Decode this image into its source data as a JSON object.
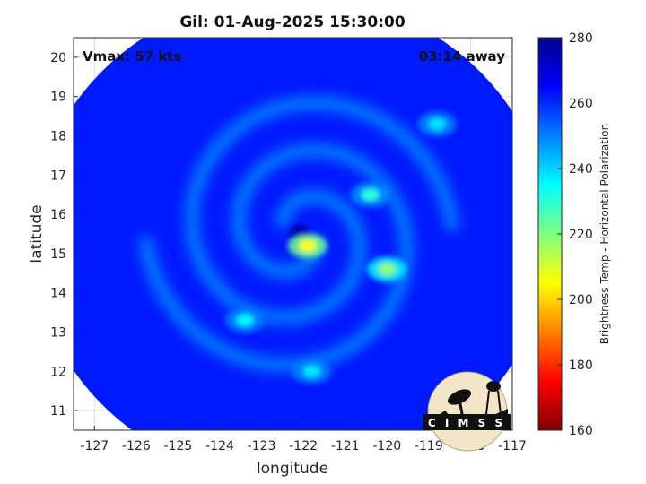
{
  "chart_data": {
    "type": "heatmap",
    "title": "Gil: 01-Aug-2025 15:30:00",
    "xlabel": "longitude",
    "ylabel": "latitude",
    "xlim": [
      -127.5,
      -117
    ],
    "ylim": [
      10.5,
      20.5
    ],
    "xticks": [
      -127,
      -126,
      -125,
      -124,
      -123,
      -122,
      -121,
      -120,
      -119,
      -118,
      -117
    ],
    "yticks": [
      11,
      12,
      13,
      14,
      15,
      16,
      17,
      18,
      19,
      20
    ],
    "grid": true,
    "colorbar": {
      "label": "Brightness Temp - Horizontal Polarization",
      "range": [
        160,
        280
      ],
      "ticks": [
        160,
        180,
        200,
        220,
        240,
        260,
        280
      ],
      "colormap": [
        "#800000",
        "#ff0000",
        "#ff8000",
        "#ffff00",
        "#80ff80",
        "#00ffff",
        "#0080ff",
        "#0000ff",
        "#00008f"
      ]
    },
    "swath_center": {
      "lon": -122.3,
      "lat": 15.4
    },
    "storm_center": {
      "lon": -122.1,
      "lat": 15.5
    },
    "background_value": 262,
    "features": [
      {
        "name": "eyewall",
        "lon": -121.9,
        "lat": 15.2,
        "value": 205
      },
      {
        "name": "rainband-east",
        "lon": -120.0,
        "lat": 14.6,
        "value": 218
      },
      {
        "name": "rainband-northeast",
        "lon": -120.4,
        "lat": 16.5,
        "value": 230
      },
      {
        "name": "band-north",
        "lon": -118.8,
        "lat": 18.3,
        "value": 238
      },
      {
        "name": "band-southwest",
        "lon": -123.4,
        "lat": 13.3,
        "value": 236
      },
      {
        "name": "band-south",
        "lon": -121.8,
        "lat": 12.0,
        "value": 238
      }
    ],
    "annotations": {
      "vmax": "Vmax: 57 kts",
      "time_away": "03:14 away"
    }
  },
  "logo": {
    "text": "C I M S S"
  }
}
